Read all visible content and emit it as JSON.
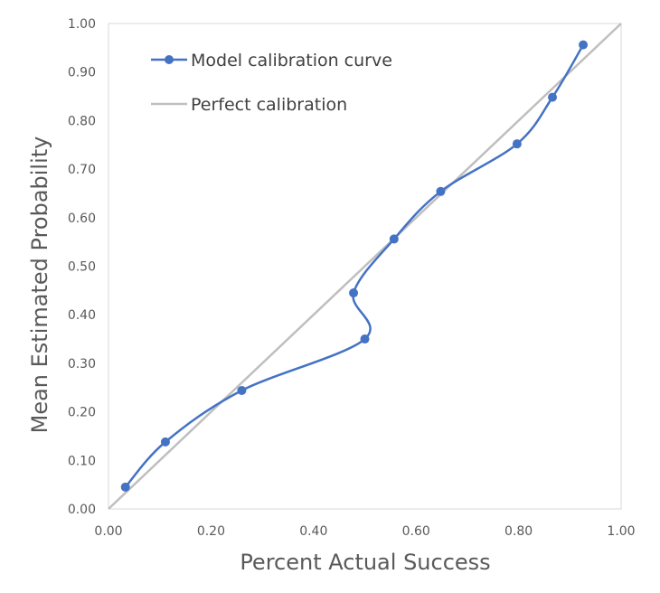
{
  "chart_data": {
    "type": "scatter",
    "title": "",
    "xlabel": "Percent Actual Success",
    "ylabel": "Mean Estimated Probability",
    "xlim": [
      0,
      1
    ],
    "ylim": [
      0,
      1
    ],
    "x_ticks": [
      "0.00",
      "0.20",
      "0.40",
      "0.60",
      "0.80",
      "1.00"
    ],
    "y_ticks": [
      "0.00",
      "0.10",
      "0.20",
      "0.30",
      "0.40",
      "0.50",
      "0.60",
      "0.70",
      "0.80",
      "0.90",
      "1.00"
    ],
    "grid": false,
    "legend_position": "top-left",
    "series": [
      {
        "name": "Model calibration curve",
        "color": "#4472C4",
        "style": "smooth-line-with-markers",
        "points": [
          {
            "x": 0.033,
            "y": 0.045
          },
          {
            "x": 0.111,
            "y": 0.138
          },
          {
            "x": 0.26,
            "y": 0.244
          },
          {
            "x": 0.5,
            "y": 0.35
          },
          {
            "x": 0.478,
            "y": 0.445
          },
          {
            "x": 0.557,
            "y": 0.556
          },
          {
            "x": 0.648,
            "y": 0.654
          },
          {
            "x": 0.797,
            "y": 0.752
          },
          {
            "x": 0.866,
            "y": 0.848
          },
          {
            "x": 0.926,
            "y": 0.956
          }
        ]
      },
      {
        "name": "Perfect calibration",
        "color": "#BFBFBF",
        "style": "line",
        "points": [
          {
            "x": 0,
            "y": 0
          },
          {
            "x": 1,
            "y": 1
          }
        ]
      }
    ]
  }
}
